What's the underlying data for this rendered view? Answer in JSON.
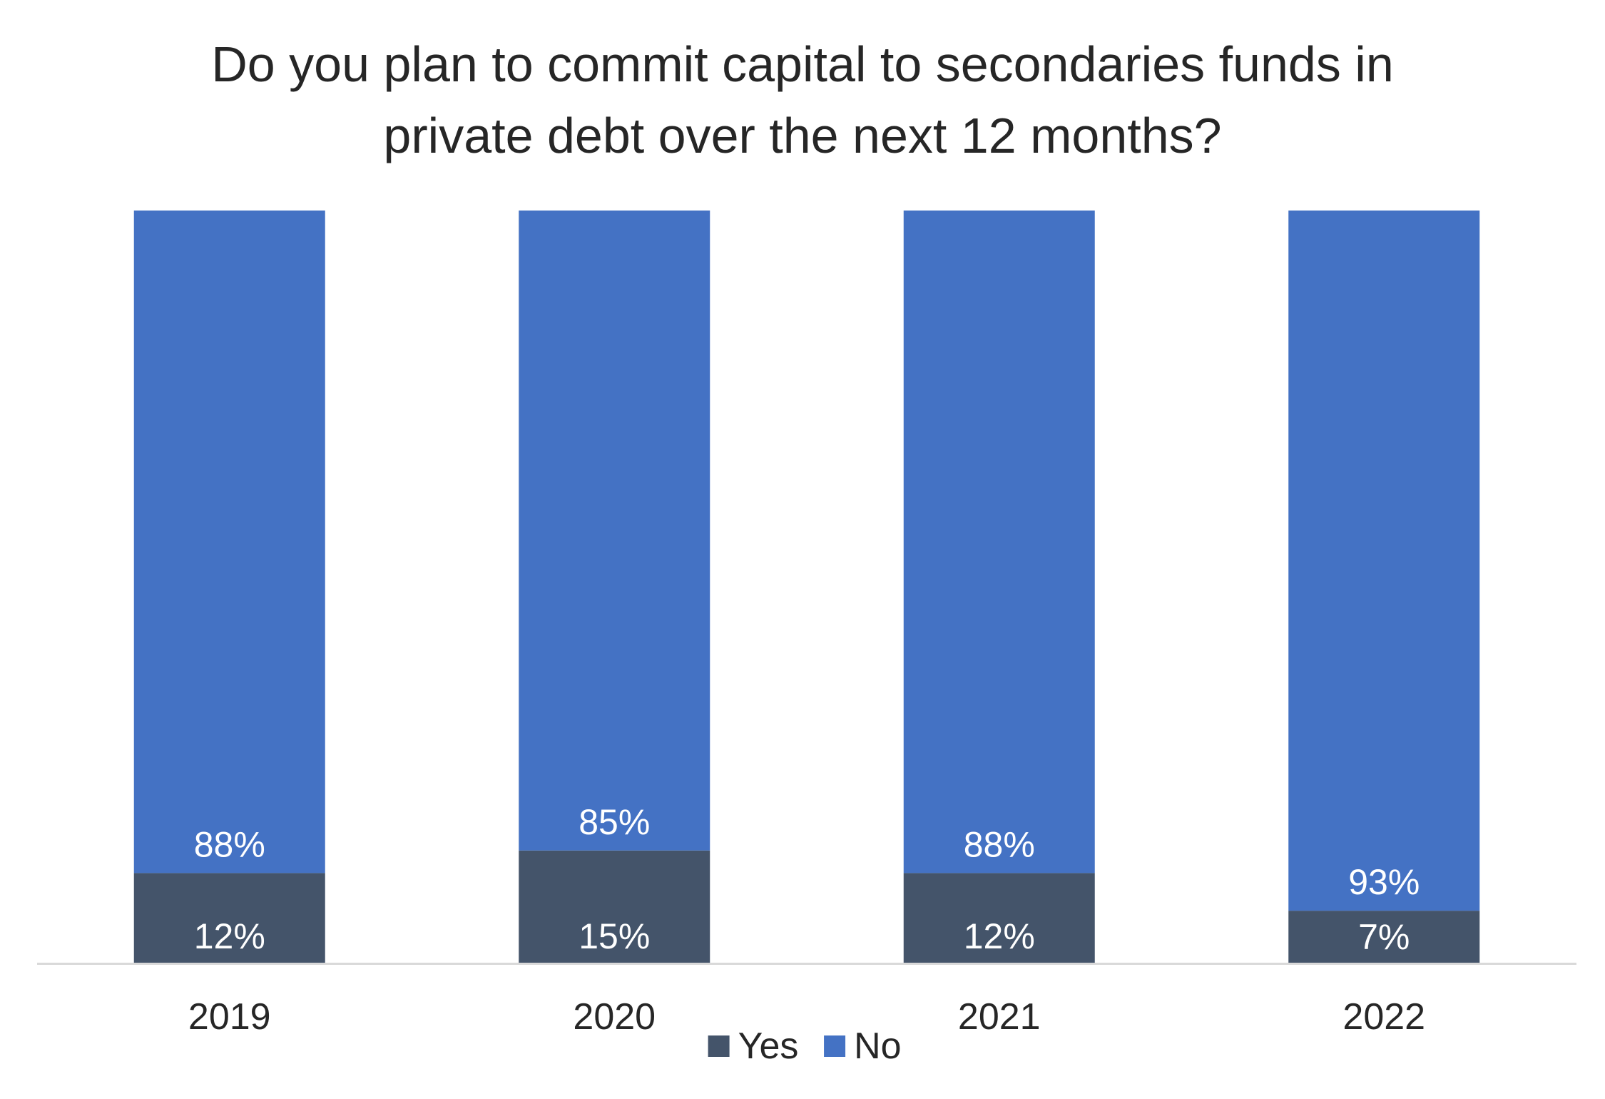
{
  "chart_data": {
    "type": "bar",
    "stacked": true,
    "percent_stacked": true,
    "title_lines": [
      "Do you plan to commit capital to secondaries funds in",
      "private debt over the next 12 months?"
    ],
    "categories": [
      "2019",
      "2020",
      "2021",
      "2022"
    ],
    "series": [
      {
        "name": "Yes",
        "values": [
          12,
          15,
          12,
          7
        ],
        "labels": [
          "12%",
          "15%",
          "12%",
          "7%"
        ],
        "color": "#44546A"
      },
      {
        "name": "No",
        "values": [
          88,
          85,
          88,
          93
        ],
        "labels": [
          "88%",
          "85%",
          "88%",
          "93%"
        ],
        "color": "#4472C4"
      }
    ],
    "ylim": [
      0,
      100
    ],
    "grid": false,
    "legend_position": "bottom",
    "axis_color": "#D9D9D9",
    "label_color": "#FFFFFF",
    "text_color": "#262626"
  }
}
